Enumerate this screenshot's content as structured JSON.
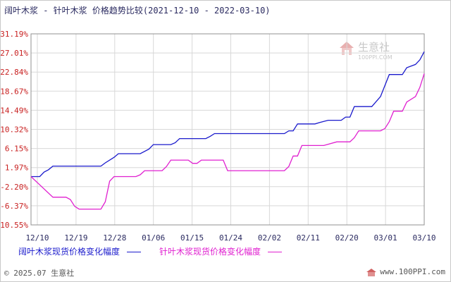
{
  "title": "阔叶木浆 - 针叶木浆 价格趋势比较(2021-12-10 - 2022-03-10)",
  "watermark": {
    "brand": "生意社",
    "url": "100PPI.COM"
  },
  "footer": {
    "copyright": "© 2025.07 生意社",
    "url": "www.100PPI.com"
  },
  "colors": {
    "series1": "#1a1acc",
    "series2": "#e020d0",
    "zero_label": "#1a1acc",
    "other_label": "#c82020",
    "grid": "#d8d8d8",
    "frame": "#909090"
  },
  "chart_data": {
    "type": "line",
    "title": "阔叶木浆 - 针叶木浆 价格趋势比较(2021-12-10 - 2022-03-10)",
    "x_ticks": [
      "12/10",
      "12/19",
      "12/28",
      "01/06",
      "01/15",
      "01/24",
      "02/02",
      "02/11",
      "02/20",
      "03/01",
      "03/10"
    ],
    "y_ticks": [
      "31.19%",
      "27.01%",
      "22.84%",
      "18.67%",
      "14.49%",
      "10.32%",
      "6.15%",
      "1.97%",
      "-2.20%",
      "-6.37%",
      "-10.55%"
    ],
    "ylim": [
      -10.55,
      31.19
    ],
    "x_range": [
      "2021-12-10",
      "2022-03-10"
    ],
    "grid": true,
    "legend_position": "bottom",
    "series": [
      {
        "name": "阔叶木浆现货价格变化幅度",
        "points": [
          [
            "2021-12-10",
            0.0
          ],
          [
            "2021-12-12",
            0.0
          ],
          [
            "2021-12-13",
            1.0
          ],
          [
            "2021-12-14",
            1.5
          ],
          [
            "2021-12-15",
            2.3
          ],
          [
            "2021-12-16",
            2.3
          ],
          [
            "2021-12-26",
            2.3
          ],
          [
            "2021-12-27",
            3.0
          ],
          [
            "2021-12-29",
            4.2
          ],
          [
            "2021-12-30",
            5.0
          ],
          [
            "2022-01-04",
            5.0
          ],
          [
            "2022-01-06",
            6.0
          ],
          [
            "2022-01-07",
            7.0
          ],
          [
            "2022-01-11",
            7.0
          ],
          [
            "2022-01-12",
            7.4
          ],
          [
            "2022-01-13",
            8.3
          ],
          [
            "2022-01-19",
            8.3
          ],
          [
            "2022-01-20",
            8.8
          ],
          [
            "2022-01-21",
            9.4
          ],
          [
            "2022-02-06",
            9.4
          ],
          [
            "2022-02-07",
            10.0
          ],
          [
            "2022-02-08",
            10.0
          ],
          [
            "2022-02-09",
            11.5
          ],
          [
            "2022-02-13",
            11.5
          ],
          [
            "2022-02-14",
            11.8
          ],
          [
            "2022-02-16",
            12.3
          ],
          [
            "2022-02-19",
            12.3
          ],
          [
            "2022-02-20",
            13.0
          ],
          [
            "2022-02-21",
            13.0
          ],
          [
            "2022-02-22",
            15.3
          ],
          [
            "2022-02-26",
            15.3
          ],
          [
            "2022-02-28",
            17.5
          ],
          [
            "2022-03-02",
            22.3
          ],
          [
            "2022-03-05",
            22.3
          ],
          [
            "2022-03-06",
            23.8
          ],
          [
            "2022-03-08",
            24.5
          ],
          [
            "2022-03-09",
            25.5
          ],
          [
            "2022-03-10",
            27.3
          ]
        ]
      },
      {
        "name": "针叶木浆现货价格变化幅度",
        "points": [
          [
            "2021-12-10",
            0.0
          ],
          [
            "2021-12-12",
            -1.8
          ],
          [
            "2021-12-15",
            -4.5
          ],
          [
            "2021-12-18",
            -4.5
          ],
          [
            "2021-12-19",
            -5.0
          ],
          [
            "2021-12-20",
            -6.5
          ],
          [
            "2021-12-21",
            -7.1
          ],
          [
            "2021-12-26",
            -7.1
          ],
          [
            "2021-12-27",
            -5.5
          ],
          [
            "2021-12-28",
            -1.0
          ],
          [
            "2021-12-29",
            0.0
          ],
          [
            "2022-01-03",
            0.0
          ],
          [
            "2022-01-04",
            0.4
          ],
          [
            "2022-01-05",
            1.3
          ],
          [
            "2022-01-09",
            1.3
          ],
          [
            "2022-01-10",
            2.2
          ],
          [
            "2022-01-11",
            3.6
          ],
          [
            "2022-01-15",
            3.6
          ],
          [
            "2022-01-16",
            2.9
          ],
          [
            "2022-01-17",
            2.9
          ],
          [
            "2022-01-18",
            3.6
          ],
          [
            "2022-01-23",
            3.6
          ],
          [
            "2022-01-24",
            1.3
          ],
          [
            "2022-02-06",
            1.3
          ],
          [
            "2022-02-07",
            2.2
          ],
          [
            "2022-02-08",
            4.5
          ],
          [
            "2022-02-09",
            4.5
          ],
          [
            "2022-02-10",
            6.8
          ],
          [
            "2022-02-15",
            6.8
          ],
          [
            "2022-02-18",
            7.6
          ],
          [
            "2022-02-21",
            7.6
          ],
          [
            "2022-02-22",
            8.5
          ],
          [
            "2022-02-23",
            10.0
          ],
          [
            "2022-02-28",
            10.0
          ],
          [
            "2022-03-01",
            10.5
          ],
          [
            "2022-03-02",
            12.0
          ],
          [
            "2022-03-03",
            14.3
          ],
          [
            "2022-03-05",
            14.3
          ],
          [
            "2022-03-06",
            16.3
          ],
          [
            "2022-03-08",
            17.5
          ],
          [
            "2022-03-09",
            19.5
          ],
          [
            "2022-03-10",
            22.5
          ]
        ]
      }
    ]
  }
}
